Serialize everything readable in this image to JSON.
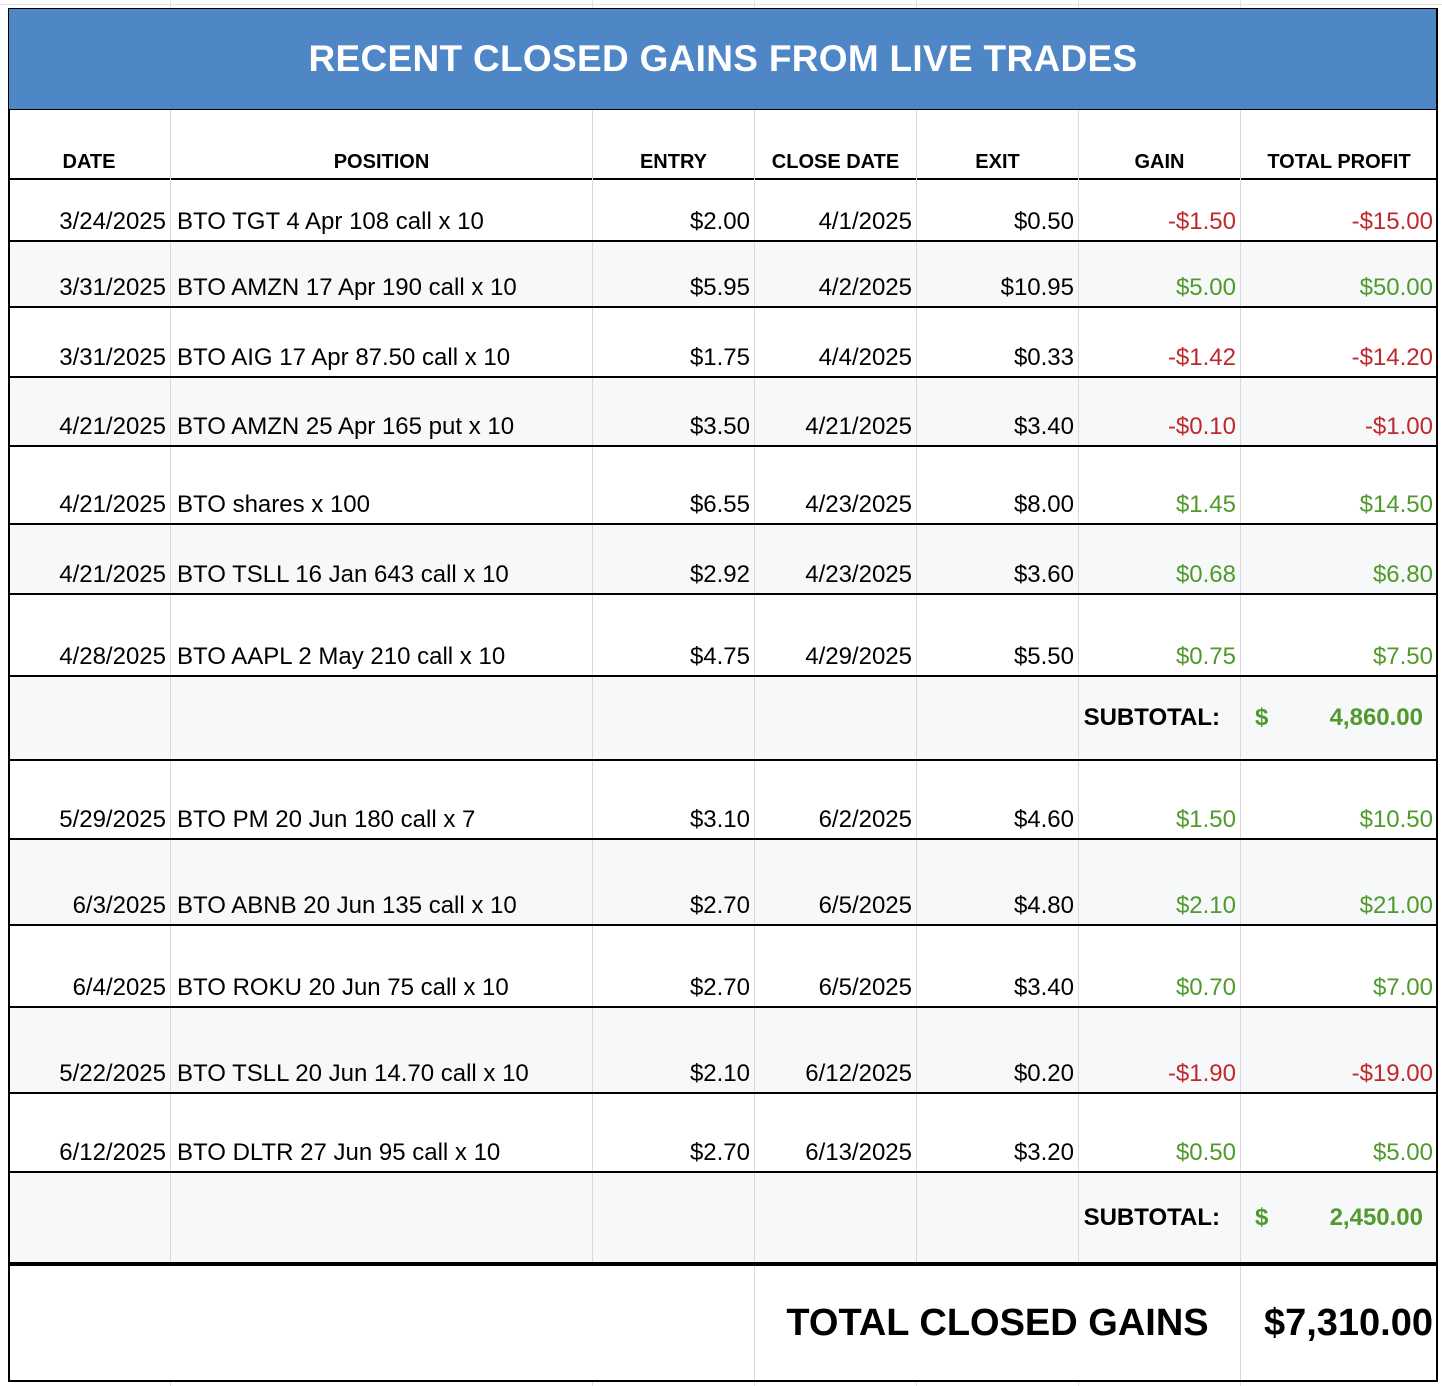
{
  "title": "RECENT CLOSED GAINS FROM LIVE TRADES",
  "headers": {
    "date": "DATE",
    "position": "POSITION",
    "entry": "ENTRY",
    "close_date": "CLOSE DATE",
    "exit": "EXIT",
    "gain": "GAIN",
    "total_profit": "TOTAL PROFIT"
  },
  "trades": [
    {
      "date": "3/24/2025",
      "position": "BTO TGT 4 Apr 108 call x 10",
      "entry": "$2.00",
      "close_date": "4/1/2025",
      "exit": "$0.50",
      "gain": "-$1.50",
      "total": "-$15.00"
    },
    {
      "date": "3/31/2025",
      "position": "BTO AMZN 17 Apr 190 call x 10",
      "entry": "$5.95",
      "close_date": "4/2/2025",
      "exit": "$10.95",
      "gain": "$5.00",
      "total": "$50.00"
    },
    {
      "date": "3/31/2025",
      "position": "BTO AIG 17 Apr 87.50 call x 10",
      "entry": "$1.75",
      "close_date": "4/4/2025",
      "exit": "$0.33",
      "gain": "-$1.42",
      "total": "-$14.20"
    },
    {
      "date": "4/21/2025",
      "position": "BTO AMZN 25 Apr 165 put x 10",
      "entry": "$3.50",
      "close_date": "4/21/2025",
      "exit": "$3.40",
      "gain": "-$0.10",
      "total": "-$1.00"
    },
    {
      "date": "4/21/2025",
      "position": "BTO shares x 100",
      "entry": "$6.55",
      "close_date": "4/23/2025",
      "exit": "$8.00",
      "gain": "$1.45",
      "total": "$14.50"
    },
    {
      "date": "4/21/2025",
      "position": "BTO TSLL 16 Jan 643 call x 10",
      "entry": "$2.92",
      "close_date": "4/23/2025",
      "exit": "$3.60",
      "gain": "$0.68",
      "total": "$6.80"
    },
    {
      "date": "4/28/2025",
      "position": "BTO AAPL 2 May 210 call x 10",
      "entry": "$4.75",
      "close_date": "4/29/2025",
      "exit": "$5.50",
      "gain": "$0.75",
      "total": "$7.50"
    }
  ],
  "subtotal1": {
    "label": "SUBTOTAL:",
    "currency": "$",
    "value": "4,860.00"
  },
  "trades2": [
    {
      "date": "5/29/2025",
      "position": "BTO PM 20 Jun 180 call x 7",
      "entry": "$3.10",
      "close_date": "6/2/2025",
      "exit": "$4.60",
      "gain": "$1.50",
      "total": "$10.50"
    },
    {
      "date": "6/3/2025",
      "position": "BTO ABNB 20 Jun 135 call x 10",
      "entry": "$2.70",
      "close_date": "6/5/2025",
      "exit": "$4.80",
      "gain": "$2.10",
      "total": "$21.00"
    },
    {
      "date": "6/4/2025",
      "position": "BTO ROKU 20 Jun 75 call x 10",
      "entry": "$2.70",
      "close_date": "6/5/2025",
      "exit": "$3.40",
      "gain": "$0.70",
      "total": "$7.00"
    },
    {
      "date": "5/22/2025",
      "position": "BTO TSLL 20 Jun 14.70 call x 10",
      "entry": "$2.10",
      "close_date": "6/12/2025",
      "exit": "$0.20",
      "gain": "-$1.90",
      "total": "-$19.00"
    },
    {
      "date": "6/12/2025",
      "position": "BTO DLTR 27 Jun 95 call x 10",
      "entry": "$2.70",
      "close_date": "6/13/2025",
      "exit": "$3.20",
      "gain": "$0.50",
      "total": "$5.00"
    }
  ],
  "subtotal2": {
    "label": "SUBTOTAL:",
    "currency": "$",
    "value": "2,450.00"
  },
  "grand_total": {
    "label": "TOTAL CLOSED GAINS",
    "value": "$7,310.00"
  },
  "colors": {
    "header_bg": "#4f86c6",
    "positive": "#4f9a2b",
    "negative": "#c0282b"
  }
}
